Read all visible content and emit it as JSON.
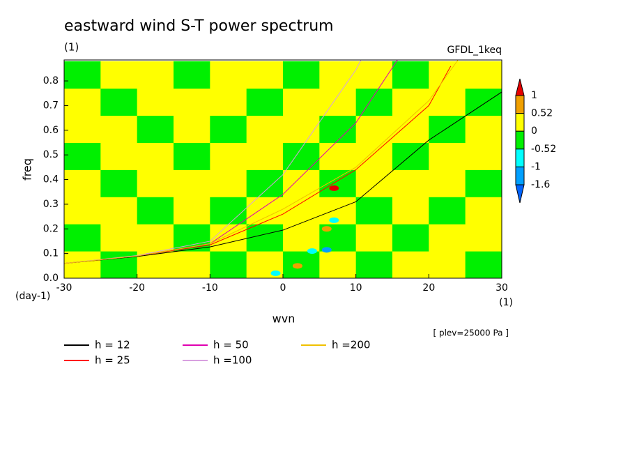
{
  "chart_data": {
    "type": "contour",
    "title": "eastward wind S-T power spectrum",
    "subtitle": "(1)",
    "model": "GFDL_1keq",
    "x_label": "wvn",
    "y_label": "freq",
    "x_unit": "(1)",
    "y_unit": "(day-1)",
    "note": "[ plev=25000 Pa ]",
    "xlim": [
      -30,
      30
    ],
    "xticks": [
      -30,
      -20,
      -10,
      0,
      10,
      20,
      30
    ],
    "ylim": [
      0,
      0.885
    ],
    "yticks": [
      {
        "value": 0,
        "label": "0.0"
      },
      0.1,
      0.2,
      0.3,
      0.4,
      0.5,
      0.6,
      0.7,
      0.8
    ],
    "colorbar": {
      "levels": [
        1,
        0.52,
        0,
        -0.52,
        -1,
        -1.6
      ],
      "colors": [
        "#e60000",
        "#f0a000",
        "#ffff00",
        "#00f000",
        "#00ffff",
        "#00a0ff",
        "#0064ff"
      ]
    },
    "field": {
      "x": [
        -27.5,
        -22.5,
        -17.5,
        -12.5,
        -7.5,
        -2.5,
        2.5,
        7.5,
        12.5,
        17.5,
        22.5,
        27.5
      ],
      "y": [
        0.055,
        0.165,
        0.275,
        0.385,
        0.495,
        0.605,
        0.715,
        0.825
      ],
      "z": [
        [
          0.2,
          -0.2,
          0.2,
          0.2,
          -0.2,
          0.2,
          -0.2,
          0.2,
          -0.2,
          0.2,
          0.2,
          -0.2
        ],
        [
          -0.2,
          0.2,
          0.2,
          -0.2,
          0.2,
          -0.2,
          0.2,
          -0.2,
          0.2,
          -0.2,
          0.2,
          0.2
        ],
        [
          0.2,
          0.2,
          -0.2,
          0.2,
          -0.2,
          0.2,
          0.2,
          0.2,
          -0.2,
          0.2,
          -0.2,
          0.2
        ],
        [
          0.2,
          -0.2,
          0.2,
          0.2,
          0.2,
          -0.2,
          0.2,
          -0.2,
          0.2,
          0.2,
          0.2,
          -0.2
        ],
        [
          -0.2,
          0.2,
          0.2,
          -0.2,
          0.2,
          0.2,
          -0.2,
          0.2,
          0.2,
          -0.2,
          0.2,
          0.2
        ],
        [
          0.2,
          0.2,
          -0.2,
          0.2,
          -0.2,
          0.2,
          0.2,
          -0.2,
          0.2,
          0.2,
          -0.2,
          0.2
        ],
        [
          0.2,
          -0.2,
          0.2,
          0.2,
          0.2,
          -0.2,
          0.2,
          0.2,
          -0.2,
          0.2,
          0.2,
          -0.2
        ],
        [
          -0.2,
          0.2,
          0.2,
          -0.2,
          0.2,
          0.2,
          -0.2,
          0.2,
          0.2,
          -0.2,
          0.2,
          0.2
        ]
      ]
    },
    "features": [
      {
        "x": 6,
        "y": 0.115,
        "value": -1.6
      },
      {
        "x": 4,
        "y": 0.11,
        "value": -1
      },
      {
        "x": 7,
        "y": 0.235,
        "value": -1
      },
      {
        "x": -1,
        "y": 0.02,
        "value": -1
      },
      {
        "x": 7,
        "y": 0.365,
        "value": 1.2
      },
      {
        "x": 6,
        "y": 0.2,
        "value": 0.7
      },
      {
        "x": 2,
        "y": 0.05,
        "value": 0.7
      }
    ],
    "series": [
      {
        "name": "h = 12",
        "color": "#000000",
        "x": [
          -30,
          -20,
          -10,
          0,
          10,
          20,
          30
        ],
        "values": [
          0.06,
          0.088,
          0.127,
          0.195,
          0.31,
          0.56,
          0.755
        ]
      },
      {
        "name": "h = 25",
        "color": "#ff0000",
        "x": [
          -30,
          -20,
          -10,
          0,
          10,
          20,
          23
        ],
        "values": [
          0.06,
          0.09,
          0.135,
          0.26,
          0.44,
          0.7,
          0.86
        ]
      },
      {
        "name": "h = 50",
        "color": "#e000b0",
        "x": [
          -30,
          -20,
          -10,
          0,
          10,
          15.7
        ],
        "values": [
          0.06,
          0.09,
          0.14,
          0.34,
          0.63,
          0.885
        ]
      },
      {
        "name": "h =100",
        "color": "#d8a0e0",
        "x": [
          -30,
          -20,
          -10,
          0,
          10,
          10.7
        ],
        "values": [
          0.06,
          0.092,
          0.15,
          0.42,
          0.845,
          0.885
        ]
      },
      {
        "name": "h =200",
        "color": "#f0c000",
        "x": [
          -30,
          -20,
          -10,
          0,
          10,
          20,
          24
        ],
        "values": [
          0.06,
          0.09,
          0.14,
          0.28,
          0.45,
          0.72,
          0.885
        ]
      }
    ]
  }
}
